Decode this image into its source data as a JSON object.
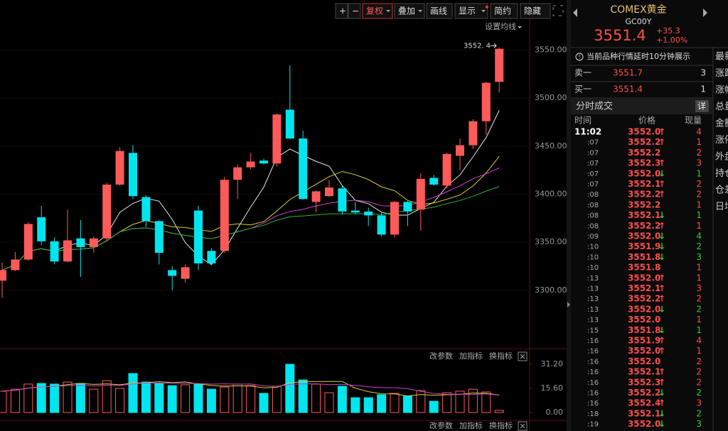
{
  "toolbar": {
    "buttons": [
      "+",
      "−",
      "复权",
      "叠加",
      "画线",
      "显示",
      "简约",
      "隐藏"
    ],
    "settings": "设置均线"
  },
  "chart_data": {
    "type": "candlestick",
    "up_color": "#ff5a5a",
    "down_color": "#00e5ee",
    "ylim": [
      3240,
      3580
    ],
    "yticks": [
      {
        "value": 3550,
        "label": "3550.00"
      },
      {
        "value": 3500,
        "label": "3500.00"
      },
      {
        "value": 3450,
        "label": "3450.00"
      },
      {
        "value": 3400,
        "label": "3400.00"
      },
      {
        "value": 3350,
        "label": "3350.00"
      },
      {
        "value": 3300,
        "label": "3300.00"
      }
    ],
    "grid": true,
    "open": [
      3310,
      3321,
      3332,
      3376,
      3351,
      3330,
      3354,
      3345,
      3354,
      3410,
      3443,
      3397,
      3372,
      3321,
      3312,
      3383,
      3341,
      3341,
      3415,
      3428,
      3435,
      3432,
      3488,
      3458,
      3392,
      3398,
      3406,
      3383,
      3382,
      3378,
      3358,
      3392,
      3384,
      3417,
      3409,
      3440,
      3451,
      3476,
      3517
    ],
    "high": [
      3329,
      3340,
      3371,
      3388,
      3355,
      3384,
      3373,
      3356,
      3412,
      3449,
      3451,
      3399,
      3373,
      3325,
      3327,
      3388,
      3344,
      3418,
      3431,
      3443,
      3437,
      3484,
      3534,
      3466,
      3404,
      3415,
      3409,
      3392,
      3386,
      3381,
      3393,
      3393,
      3422,
      3420,
      3443,
      3458,
      3478,
      3517,
      3552.4
    ],
    "low": [
      3292,
      3320,
      3331,
      3347,
      3327,
      3329,
      3314,
      3339,
      3351,
      3409,
      3395,
      3366,
      3327,
      3300,
      3308,
      3321,
      3326,
      3339,
      3395,
      3426,
      3431,
      3429,
      3457,
      3394,
      3381,
      3397,
      3379,
      3379,
      3367,
      3356,
      3355,
      3367,
      3362,
      3409,
      3406,
      3425,
      3447,
      3462,
      3506
    ],
    "close": [
      3321,
      3332,
      3369,
      3351,
      3330,
      3352,
      3345,
      3354,
      3410,
      3445,
      3398,
      3372,
      3339,
      3315,
      3324,
      3328,
      3328,
      3415,
      3428,
      3434,
      3432,
      3483,
      3458,
      3395,
      3403,
      3407,
      3382,
      3381,
      3378,
      3358,
      3392,
      3382,
      3416,
      3410,
      3442,
      3451,
      3476,
      3516,
      3551.4
    ],
    "high_label": "3552. 4",
    "volume": {
      "ylim": [
        0,
        31.2
      ],
      "yticks": [
        {
          "value": 31.2,
          "label": "31.20"
        },
        {
          "value": 15.6,
          "label": "15.60"
        },
        {
          "value": 0,
          "label": "0.00"
        }
      ],
      "values": [
        13.8,
        15.1,
        18.4,
        18.8,
        18.4,
        19.7,
        18.8,
        15.1,
        20.6,
        15.6,
        25.2,
        19.7,
        18.8,
        17.4,
        17.9,
        18.4,
        15.1,
        16.5,
        18.4,
        17.4,
        12.4,
        17.0,
        31.2,
        21.1,
        18.4,
        12.8,
        17.0,
        9.6,
        9.6,
        11.5,
        12.4,
        10.6,
        14.2,
        7.3,
        12.8,
        13.8,
        15.1,
        13.3,
        1.4
      ]
    },
    "panel_links": [
      "改参数",
      "加指标",
      "换指标"
    ]
  },
  "quote": {
    "name": "COMEX黄金",
    "code": "GC00Y",
    "price": "3551.4",
    "change": "+35.3",
    "change_pct": "+1.00%",
    "notice": "当前品种行情延时10分钟展示",
    "sell": {
      "label": "卖一",
      "price": "3551.7",
      "volume": 3
    },
    "buy": {
      "label": "买一",
      "price": "3551.4",
      "volume": 1
    },
    "trades_title": "分时成交",
    "detail": "详",
    "headers": [
      "时间",
      "价格",
      "现量"
    ],
    "trades": [
      {
        "time": "11:02",
        "price": "3552.0",
        "arrow": "↑",
        "volume": 4
      },
      {
        "time": ":07",
        "price": "3552.2",
        "arrow": "↑",
        "volume": 1
      },
      {
        "time": ":07",
        "price": "3552.2",
        "volume": 2
      },
      {
        "time": ":07",
        "price": "3552.3",
        "arrow": "↑",
        "volume": 3
      },
      {
        "time": ":07",
        "price": "3552.0",
        "arrow": "↓",
        "volume": 1
      },
      {
        "time": ":07",
        "price": "3552.1",
        "arrow": "↑",
        "volume": 2
      },
      {
        "time": ":08",
        "price": "3552.2",
        "arrow": "↑",
        "volume": 2
      },
      {
        "time": ":08",
        "price": "3552.2",
        "volume": 1
      },
      {
        "time": ":08",
        "price": "3552.1",
        "arrow": "↓",
        "volume": 1
      },
      {
        "time": ":08",
        "price": "3552.2",
        "arrow": "↑",
        "volume": 1
      },
      {
        "time": ":09",
        "price": "3552.0",
        "arrow": "↓",
        "volume": 4
      },
      {
        "time": ":10",
        "price": "3551.9",
        "arrow": "↓",
        "volume": 2
      },
      {
        "time": ":10",
        "price": "3551.8",
        "arrow": "↓",
        "volume": 3
      },
      {
        "time": ":10",
        "price": "3551.8",
        "volume": 1
      },
      {
        "time": ":13",
        "price": "3552.0",
        "arrow": "↑",
        "volume": 1
      },
      {
        "time": ":13",
        "price": "3552.1",
        "arrow": "↑",
        "volume": 3
      },
      {
        "time": ":13",
        "price": "3552.2",
        "arrow": "↑",
        "volume": 2
      },
      {
        "time": ":13",
        "price": "3552.0",
        "arrow": "↓",
        "volume": 2
      },
      {
        "time": ":13",
        "price": "3552.0",
        "volume": 1
      },
      {
        "time": ":15",
        "price": "3551.8",
        "arrow": "↓",
        "volume": 1
      },
      {
        "time": ":16",
        "price": "3551.9",
        "arrow": "↑",
        "volume": 4
      },
      {
        "time": ":16",
        "price": "3552.0",
        "arrow": "↑",
        "volume": 1
      },
      {
        "time": ":16",
        "price": "3552.0",
        "volume": 2
      },
      {
        "time": ":16",
        "price": "3552.1",
        "arrow": "↑",
        "volume": 2
      },
      {
        "time": ":16",
        "price": "3552.3",
        "arrow": "↑",
        "volume": 2
      },
      {
        "time": ":16",
        "price": "3552.2",
        "arrow": "↓",
        "volume": 2
      },
      {
        "time": ":16",
        "price": "3552.4",
        "arrow": "↑",
        "volume": 3
      },
      {
        "time": ":18",
        "price": "3552.1",
        "arrow": "↓",
        "volume": 2
      },
      {
        "time": ":19",
        "price": "3552.0",
        "arrow": "↓",
        "volume": 3
      }
    ]
  },
  "side_labels": [
    "最新",
    "涨跌",
    "涨幅",
    "总量",
    "金额",
    "涨停",
    "外盘",
    "持仓",
    "仓差",
    "日增"
  ]
}
